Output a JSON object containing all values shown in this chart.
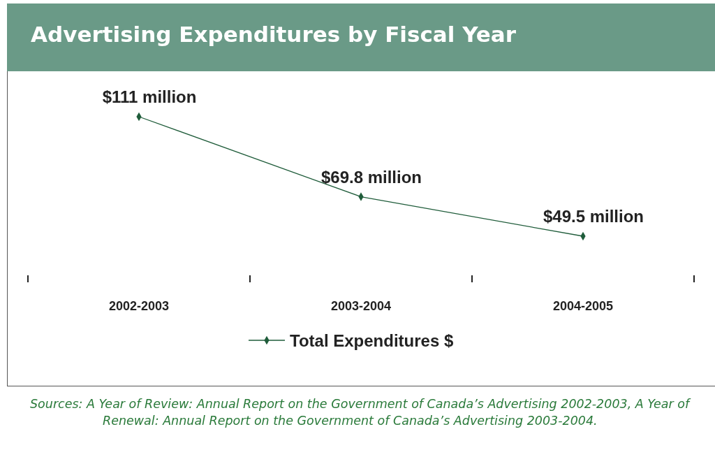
{
  "chart_data": {
    "type": "line",
    "title": "Advertising Expenditures by Fiscal Year",
    "categories": [
      "2002-2003",
      "2003-2004",
      "2004-2005"
    ],
    "series": [
      {
        "name": "Total Expenditures $",
        "color": "#1f5c3a",
        "values": [
          111,
          69.8,
          49.5
        ],
        "value_labels": [
          "$111 million",
          "$69.8 million",
          "$49.5 million"
        ]
      }
    ],
    "tick_labels": "x",
    "marker": "diamond",
    "legend": "bottom",
    "annotations": [
      "Sources: A Year of Review: Annual Report on the Government of Canada’s Advertising 2002-2003, A Year of Renewal: Annual Report on the Government of Canada’s Advertising 2003-2004."
    ]
  }
}
